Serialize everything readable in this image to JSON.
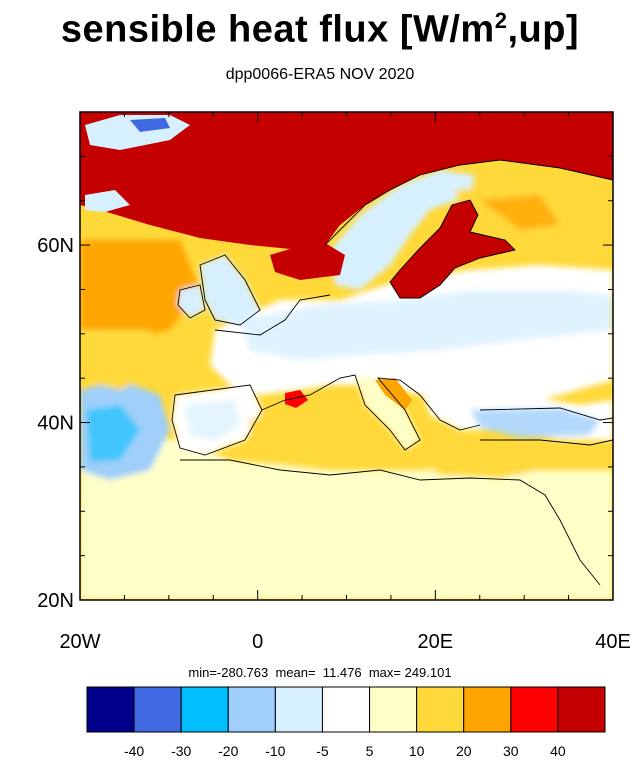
{
  "title": {
    "main": "sensible heat flux [W/m",
    "sup": "2",
    "tail": ",up]"
  },
  "subtitle": "dpp0066-ERA5  NOV 2020",
  "stats": "min=-280.763  mean=  11.476  max= 249.101",
  "map": {
    "lon_range": [
      -20,
      40
    ],
    "lat_range": [
      20,
      75
    ],
    "lat_ticks": [
      {
        "value": 60,
        "label": "60N"
      },
      {
        "value": 40,
        "label": "40N"
      },
      {
        "value": 20,
        "label": "20N"
      }
    ],
    "lon_ticks": [
      {
        "value": -20,
        "label": "20W"
      },
      {
        "value": 0,
        "label": "0"
      },
      {
        "value": 20,
        "label": "20E"
      },
      {
        "value": 40,
        "label": "40E"
      }
    ]
  },
  "colorbar": {
    "colors": [
      "#00008b",
      "#4169e1",
      "#00bfff",
      "#9fcffa",
      "#d7f0ff",
      "#ffffff",
      "#ffffc8",
      "#ffd93a",
      "#ffa500",
      "#ff0000",
      "#c40000"
    ],
    "labels": [
      "-40",
      "-30",
      "-20",
      "-10",
      "-5",
      "5",
      "10",
      "20",
      "30",
      "40"
    ]
  }
}
